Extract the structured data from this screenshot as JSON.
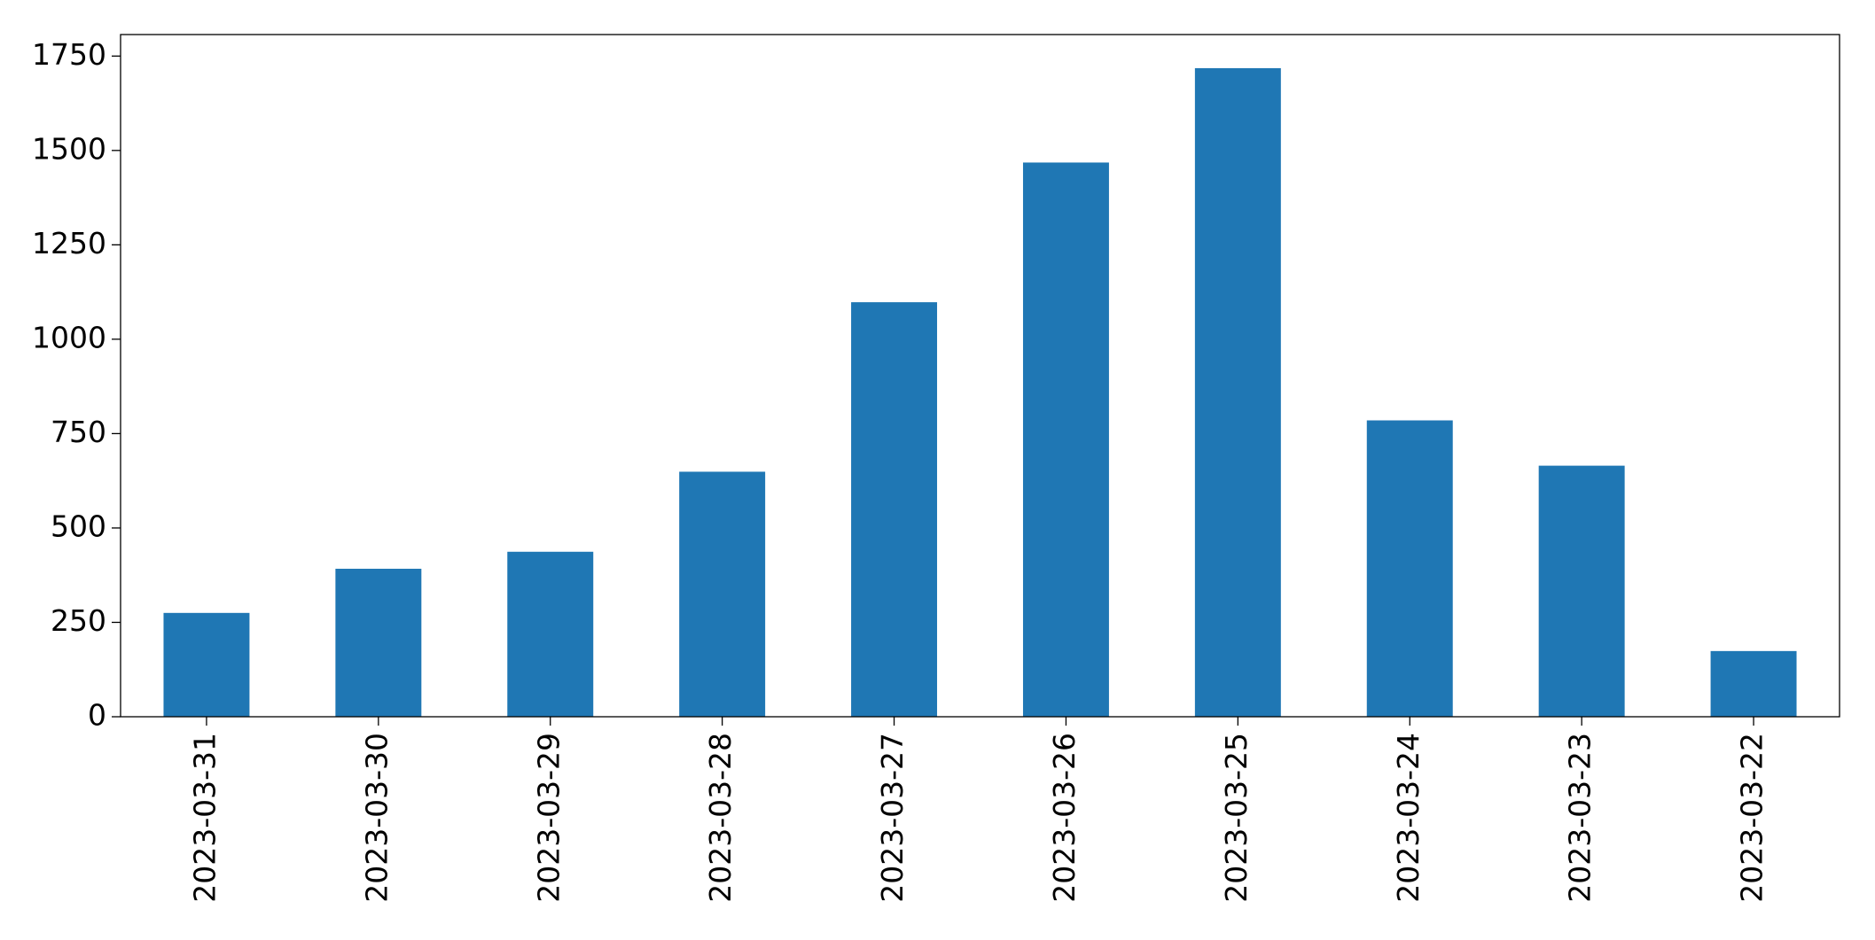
{
  "chart_data": {
    "type": "bar",
    "categories": [
      "2023-03-31",
      "2023-03-30",
      "2023-03-29",
      "2023-03-28",
      "2023-03-27",
      "2023-03-26",
      "2023-03-25",
      "2023-03-24",
      "2023-03-23",
      "2023-03-22"
    ],
    "values": [
      275,
      392,
      437,
      649,
      1098,
      1468,
      1718,
      785,
      665,
      174
    ],
    "color": "#1f77b4",
    "ylim": [
      0,
      1807
    ],
    "yticks": [
      0,
      250,
      500,
      750,
      1000,
      1250,
      1500,
      1750
    ],
    "grid": false
  }
}
